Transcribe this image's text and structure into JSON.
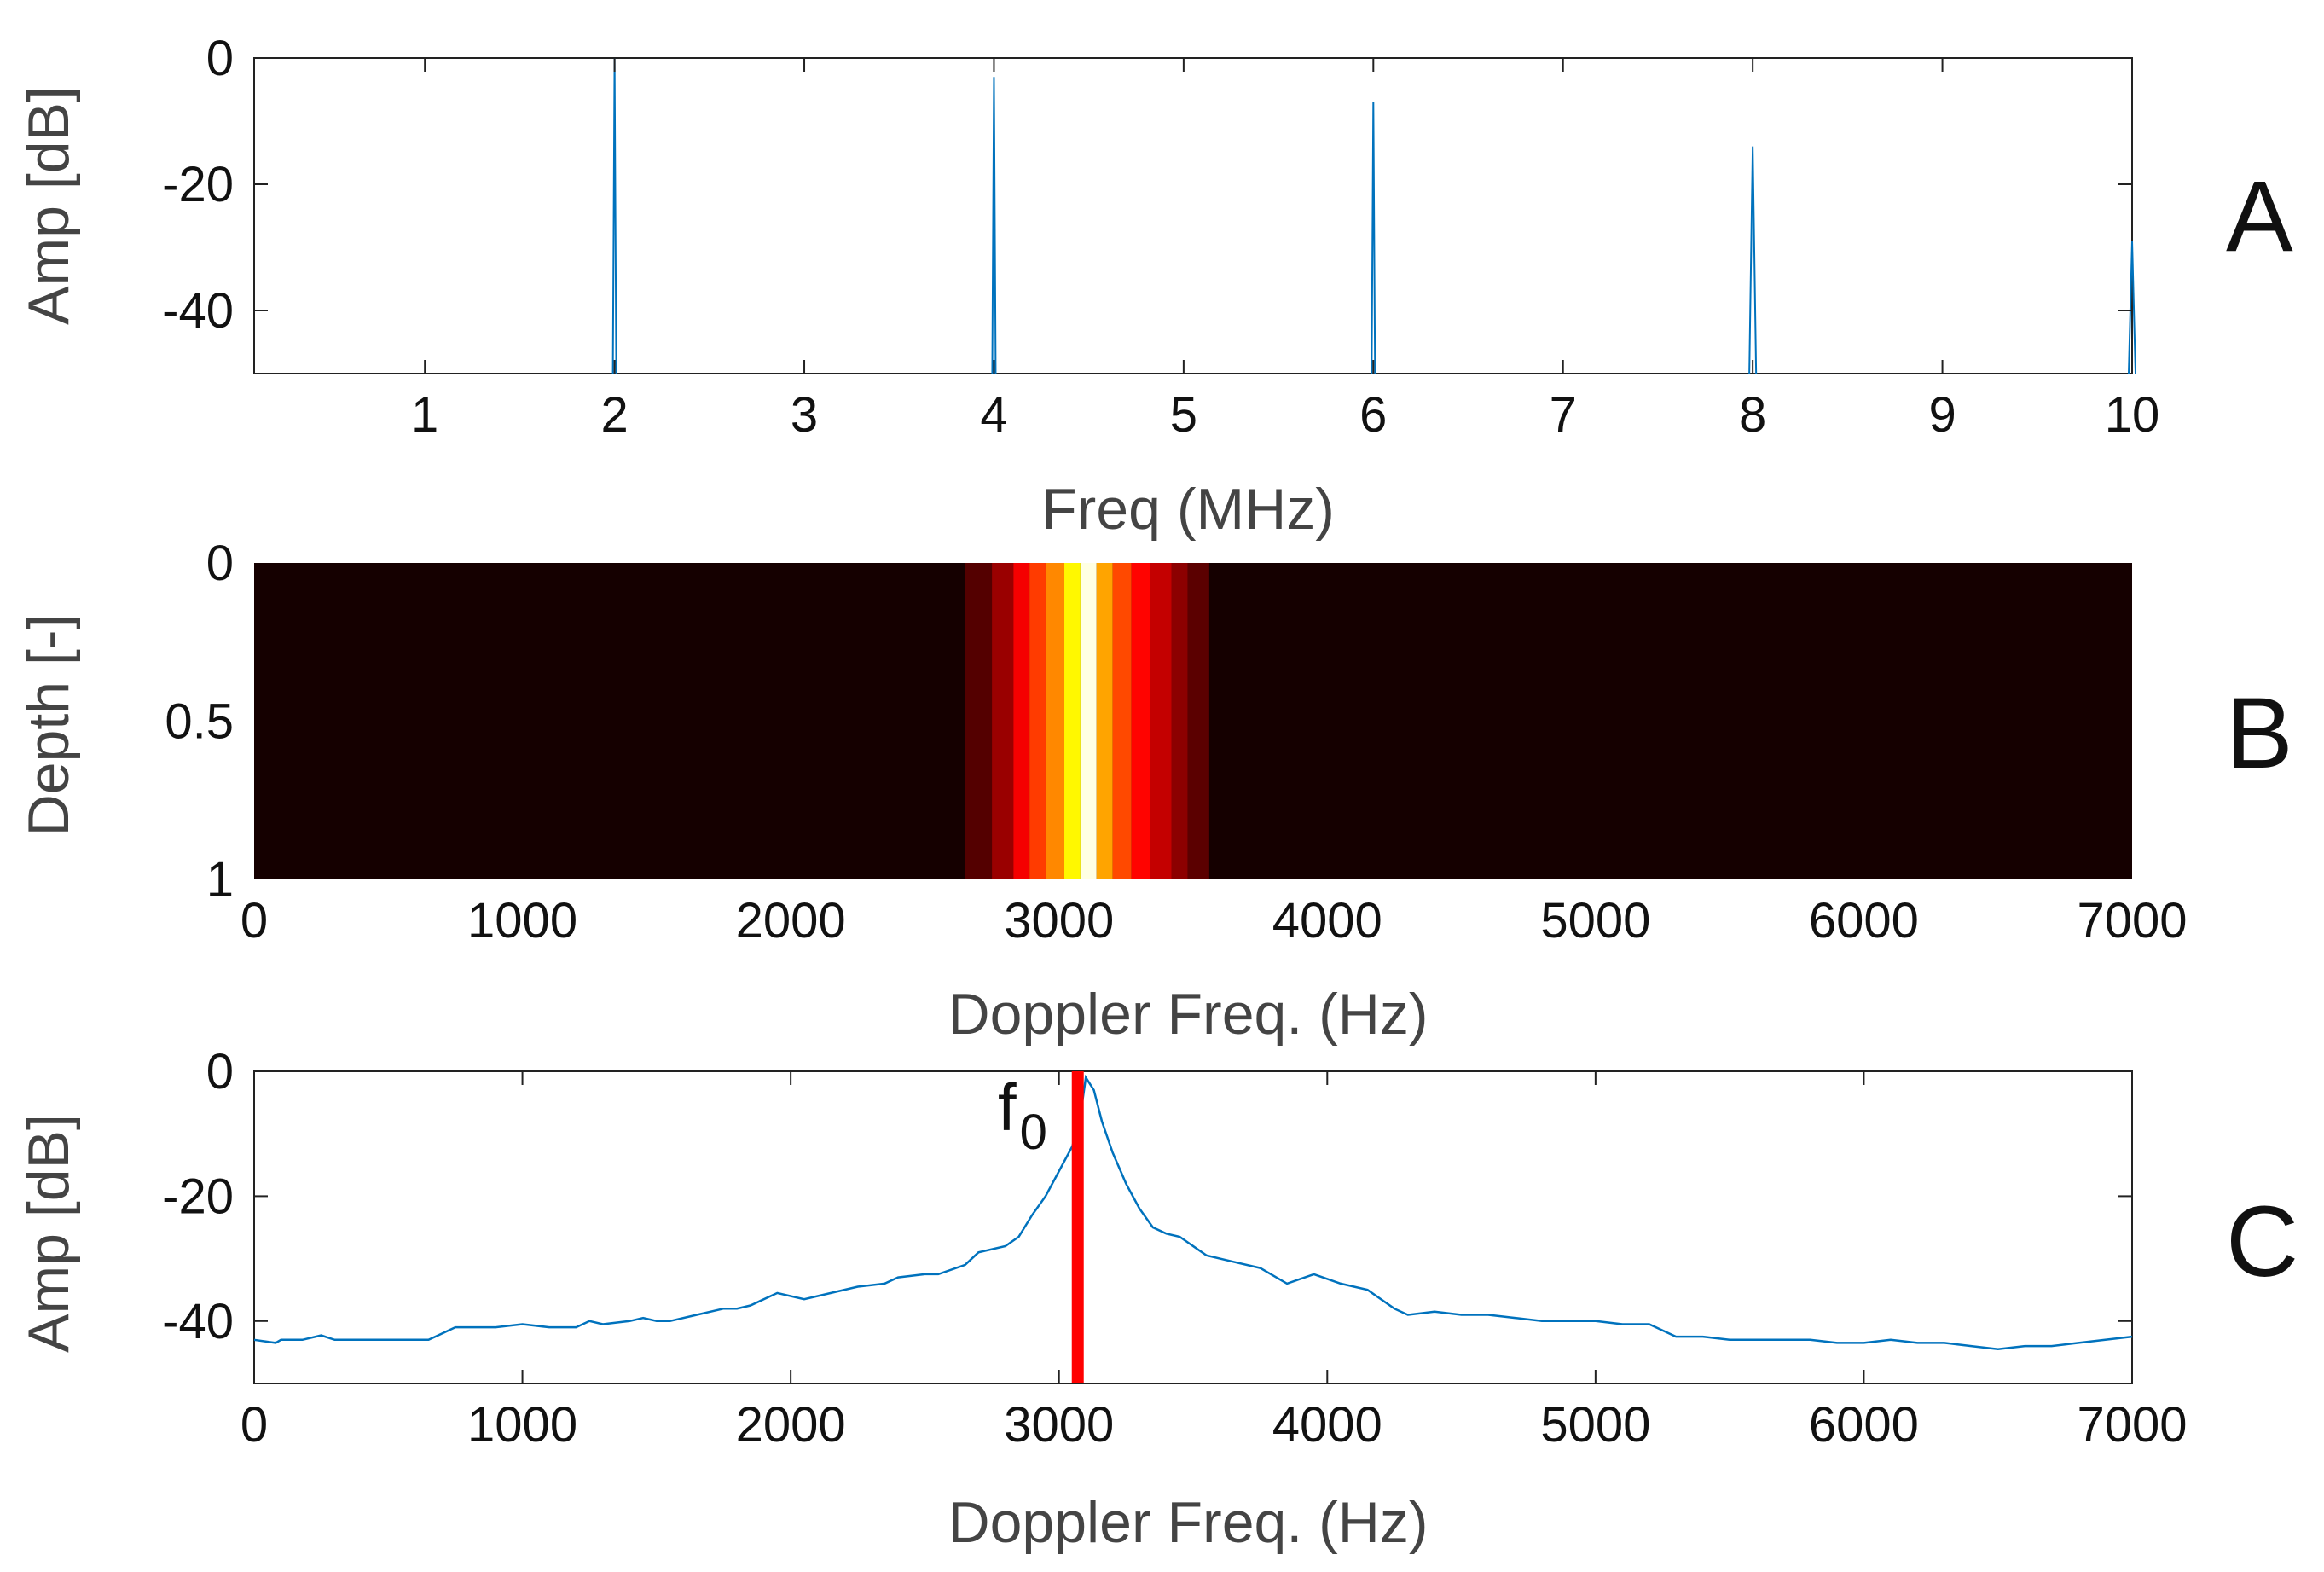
{
  "chart_data": [
    {
      "panel": "A",
      "type": "line",
      "xlabel": "Freq (MHz)",
      "ylabel": "Amp [dB]",
      "xlim": [
        0.1,
        10
      ],
      "ylim": [
        -50,
        0
      ],
      "xticks": [
        1,
        2,
        3,
        4,
        5,
        6,
        7,
        8,
        9,
        10
      ],
      "yticks": [
        0,
        -20,
        -40
      ],
      "floor": -50,
      "peaks": [
        {
          "x": 2,
          "y": 0
        },
        {
          "x": 4,
          "y": -3
        },
        {
          "x": 6,
          "y": -7
        },
        {
          "x": 8,
          "y": -14
        },
        {
          "x": 10,
          "y": -29
        }
      ],
      "color": "#0072BD"
    },
    {
      "panel": "B",
      "type": "heatmap",
      "xlabel": "Doppler Freq. (Hz)",
      "ylabel": "Depth [-]",
      "xlim": [
        0,
        7000
      ],
      "ylim": [
        0,
        1
      ],
      "xticks": [
        0,
        1000,
        2000,
        3000,
        4000,
        5000,
        6000,
        7000
      ],
      "yticks": [
        "0",
        "0.5",
        "1"
      ],
      "colormap": "hot",
      "columns": [
        {
          "x0": 2650,
          "x1": 2750,
          "v": 0.12
        },
        {
          "x0": 2750,
          "x1": 2830,
          "v": 0.22
        },
        {
          "x0": 2830,
          "x1": 2890,
          "v": 0.35
        },
        {
          "x0": 2890,
          "x1": 2950,
          "v": 0.45
        },
        {
          "x0": 2950,
          "x1": 3020,
          "v": 0.56
        },
        {
          "x0": 3020,
          "x1": 3080,
          "v": 0.72
        },
        {
          "x0": 3080,
          "x1": 3140,
          "v": 0.97
        },
        {
          "x0": 3140,
          "x1": 3200,
          "v": 0.6
        },
        {
          "x0": 3200,
          "x1": 3270,
          "v": 0.47
        },
        {
          "x0": 3270,
          "x1": 3340,
          "v": 0.37
        },
        {
          "x0": 3340,
          "x1": 3420,
          "v": 0.28
        },
        {
          "x0": 3420,
          "x1": 3480,
          "v": 0.2
        },
        {
          "x0": 3480,
          "x1": 3560,
          "v": 0.13
        }
      ]
    },
    {
      "panel": "C",
      "type": "line",
      "xlabel": "Doppler Freq. (Hz)",
      "ylabel": "Amp [dB]",
      "xlim": [
        0,
        7000
      ],
      "ylim": [
        -50,
        0
      ],
      "xticks": [
        0,
        1000,
        2000,
        3000,
        4000,
        5000,
        6000,
        7000
      ],
      "yticks": [
        0,
        -20,
        -40
      ],
      "x": [
        0,
        80,
        100,
        180,
        250,
        300,
        650,
        750,
        900,
        1000,
        1100,
        1200,
        1250,
        1300,
        1400,
        1450,
        1500,
        1550,
        1650,
        1750,
        1800,
        1850,
        1950,
        2050,
        2150,
        2250,
        2350,
        2400,
        2500,
        2550,
        2650,
        2700,
        2800,
        2850,
        2900,
        2950,
        3000,
        3050,
        3080,
        3100,
        3130,
        3160,
        3200,
        3250,
        3300,
        3350,
        3400,
        3450,
        3550,
        3650,
        3750,
        3850,
        3950,
        4050,
        4150,
        4250,
        4300,
        4400,
        4500,
        4600,
        4700,
        4800,
        4900,
        5000,
        5100,
        5200,
        5300,
        5400,
        5500,
        5600,
        5700,
        5800,
        5900,
        6000,
        6100,
        6200,
        6300,
        6400,
        6500,
        6600,
        6700,
        6800,
        6900,
        7000
      ],
      "y": [
        -43,
        -43.5,
        -43,
        -43,
        -42.3,
        -43,
        -43,
        -41,
        -41,
        -40.5,
        -41,
        -41,
        -40,
        -40.5,
        -40,
        -39.5,
        -40,
        -40,
        -39,
        -38,
        -38,
        -37.5,
        -35.5,
        -36.5,
        -35.5,
        -34.5,
        -34,
        -33,
        -32.5,
        -32.5,
        -31,
        -29,
        -28,
        -26.5,
        -23,
        -20,
        -16,
        -12,
        -7,
        -1,
        -3,
        -8,
        -13,
        -18,
        -22,
        -25,
        -26,
        -26.5,
        -29.5,
        -30.5,
        -31.5,
        -34,
        -32.5,
        -34,
        -35,
        -38,
        -39,
        -38.5,
        -39,
        -39,
        -39.5,
        -40,
        -40,
        -40,
        -40.5,
        -40.5,
        -42.5,
        -42.5,
        -43,
        -43,
        -43,
        -43,
        -43.5,
        -43.5,
        -43,
        -43.5,
        -43.5,
        -44,
        -44.5,
        -44,
        -44,
        -43.5,
        -43,
        -42.5
      ],
      "marker_x": 3070,
      "marker_color": "#ff0000",
      "annotation": "f",
      "annotation_sub": "0",
      "color": "#0072BD"
    }
  ],
  "panel_letters": [
    "A",
    "B",
    "C"
  ]
}
